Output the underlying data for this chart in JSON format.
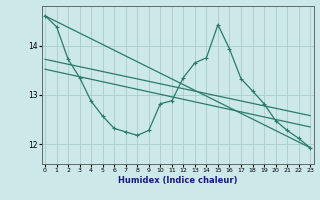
{
  "xlabel": "Humidex (Indice chaleur)",
  "background_color": "#cce8e8",
  "grid_color": "#aacccc",
  "line_color": "#2a7a6a",
  "x_ticks": [
    0,
    1,
    2,
    3,
    4,
    5,
    6,
    7,
    8,
    9,
    10,
    11,
    12,
    13,
    14,
    15,
    16,
    17,
    18,
    19,
    20,
    21,
    22,
    23
  ],
  "y_ticks": [
    12,
    13,
    14
  ],
  "ylim": [
    11.6,
    14.8
  ],
  "xlim": [
    -0.3,
    23.3
  ],
  "series1": [
    14.6,
    14.38,
    13.72,
    13.35,
    12.87,
    12.57,
    12.32,
    12.25,
    12.18,
    12.28,
    12.82,
    12.88,
    13.35,
    13.65,
    13.75,
    14.42,
    13.93,
    13.33,
    13.08,
    12.82,
    12.48,
    12.28,
    12.12,
    11.93
  ],
  "trend1_x": [
    0,
    23
  ],
  "trend1_y": [
    14.6,
    11.93
  ],
  "trend2_x": [
    0,
    23
  ],
  "trend2_y": [
    13.72,
    12.58
  ],
  "trend3_x": [
    0,
    23
  ],
  "trend3_y": [
    13.52,
    12.35
  ]
}
